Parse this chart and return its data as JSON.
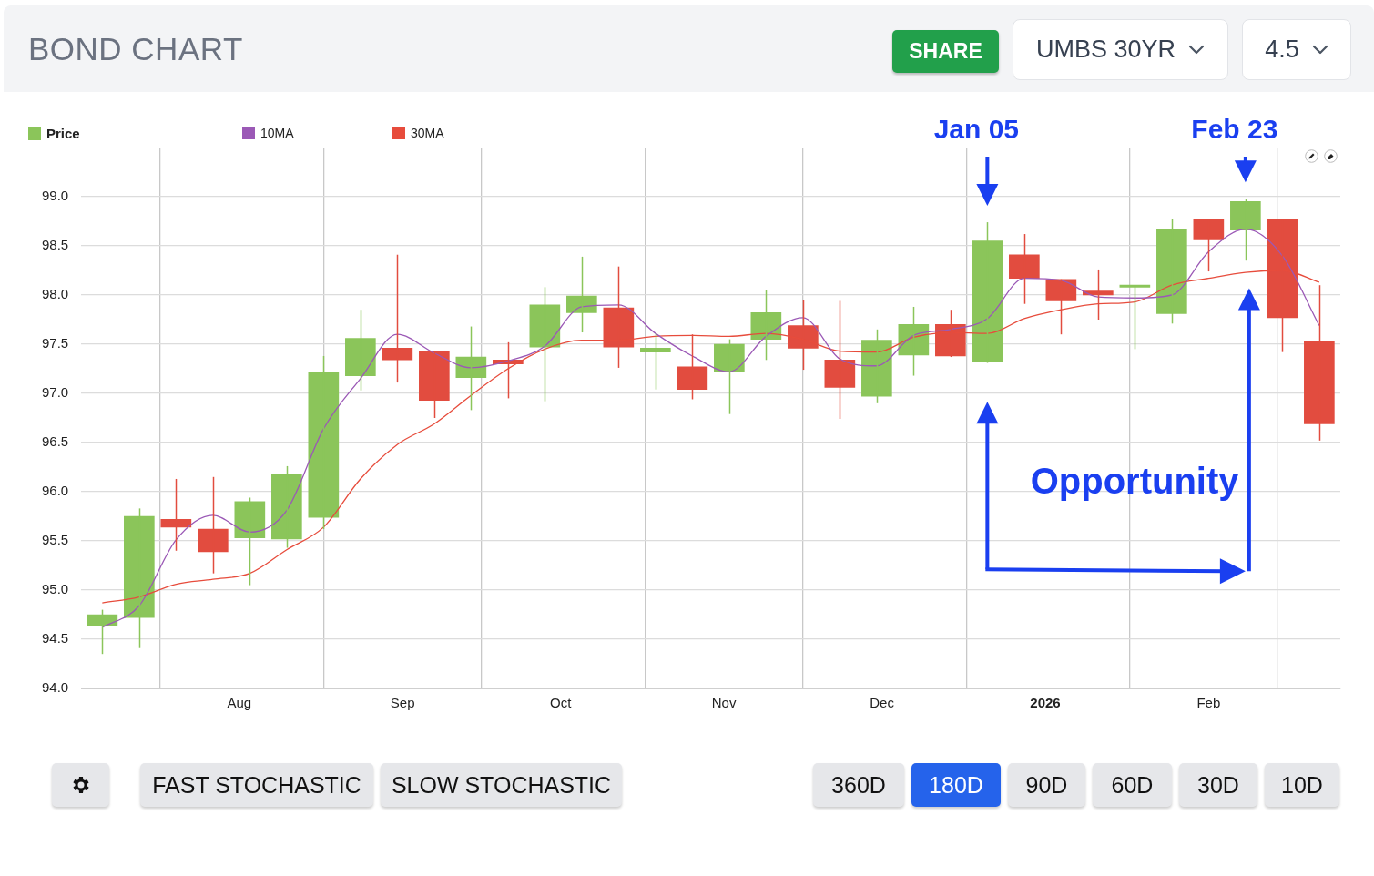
{
  "chart_data": {
    "type": "candlestick",
    "title": "BOND CHART",
    "x": [
      "2025-07-21",
      "2025-07-28",
      "2025-08-04",
      "2025-08-11",
      "2025-08-18",
      "2025-08-25",
      "2025-09-01",
      "2025-09-08",
      "2025-09-15",
      "2025-09-22",
      "2025-09-29",
      "2025-10-06",
      "2025-10-13",
      "2025-10-20",
      "2025-10-27",
      "2025-11-03",
      "2025-11-10",
      "2025-11-17",
      "2025-11-24",
      "2025-12-01",
      "2025-12-08",
      "2025-12-15",
      "2025-12-22",
      "2025-12-29",
      "2026-01-05",
      "2026-01-12",
      "2026-01-19",
      "2026-01-26",
      "2026-02-02",
      "2026-02-09",
      "2026-02-16",
      "2026-02-23",
      "2026-03-02",
      "2026-03-09"
    ],
    "xlim": [
      "2025-07-17",
      "2026-03-13"
    ],
    "xticks": [
      {
        "value": "2025-08-01",
        "label": null
      },
      {
        "value": "2025-08-16",
        "label": "Aug"
      },
      {
        "value": "2025-09-01",
        "label": null
      },
      {
        "value": "2025-09-16",
        "label": "Sep"
      },
      {
        "value": "2025-10-01",
        "label": null
      },
      {
        "value": "2025-10-16",
        "label": "Oct"
      },
      {
        "value": "2025-11-01",
        "label": null
      },
      {
        "value": "2025-11-16",
        "label": "Nov"
      },
      {
        "value": "2025-12-01",
        "label": null
      },
      {
        "value": "2025-12-16",
        "label": "Dec"
      },
      {
        "value": "2026-01-01",
        "label": null
      },
      {
        "value": "2026-01-16",
        "label": "2026"
      },
      {
        "value": "2026-02-01",
        "label": null
      },
      {
        "value": "2026-02-16",
        "label": "Feb"
      },
      {
        "value": "2026-03-01",
        "label": null
      }
    ],
    "ylim": [
      94,
      99.5
    ],
    "yticks": [
      {
        "value": 94,
        "label": "94.0"
      },
      {
        "value": 94.5,
        "label": "94.5"
      },
      {
        "value": 95,
        "label": "95.0"
      },
      {
        "value": 95.5,
        "label": "95.5"
      },
      {
        "value": 96,
        "label": "96.0"
      },
      {
        "value": 96.5,
        "label": "96.5"
      },
      {
        "value": 97,
        "label": "97.0"
      },
      {
        "value": 97.5,
        "label": "97.5"
      },
      {
        "value": 98,
        "label": "98.0"
      },
      {
        "value": 98.5,
        "label": "98.5"
      },
      {
        "value": 99,
        "label": "99.0"
      }
    ],
    "grid": true,
    "legend": "top left",
    "marker": "none",
    "series": [
      {
        "name": "Price",
        "type": "candlestick",
        "color": "#8bc55a",
        "colors": [
          "#8bc55a",
          "#8bc55a",
          "#e24c3f",
          "#e24c3f",
          "#8bc55a",
          "#8bc55a",
          "#8bc55a",
          "#8bc55a",
          "#e24c3f",
          "#e24c3f",
          "#8bc55a",
          "#e24c3f",
          "#8bc55a",
          "#8bc55a",
          "#e24c3f",
          "#8bc55a",
          "#e24c3f",
          "#8bc55a",
          "#8bc55a",
          "#e24c3f",
          "#e24c3f",
          "#8bc55a",
          "#8bc55a",
          "#e24c3f",
          "#8bc55a",
          "#e24c3f",
          "#e24c3f",
          "#e24c3f",
          "#8bc55a",
          "#8bc55a",
          "#e24c3f",
          "#8bc55a",
          "#e24c3f",
          "#e24c3f"
        ],
        "ohlc": [
          [
            94.64,
            94.8,
            94.35,
            94.75
          ],
          [
            94.72,
            95.83,
            94.41,
            95.75
          ],
          [
            95.72,
            96.13,
            95.4,
            95.64
          ],
          [
            95.62,
            96.15,
            95.17,
            95.39
          ],
          [
            95.53,
            95.94,
            95.05,
            95.9
          ],
          [
            95.52,
            96.26,
            95.43,
            96.18
          ],
          [
            95.74,
            97.38,
            95.62,
            97.21
          ],
          [
            97.18,
            97.85,
            97.03,
            97.56
          ],
          [
            97.46,
            98.41,
            97.11,
            97.34
          ],
          [
            97.43,
            97.43,
            96.75,
            96.93
          ],
          [
            97.16,
            97.68,
            96.83,
            97.37
          ],
          [
            97.34,
            97.52,
            96.95,
            97.3
          ],
          [
            97.47,
            98.08,
            96.92,
            97.9
          ],
          [
            97.82,
            98.39,
            97.62,
            97.99
          ],
          [
            97.87,
            98.29,
            97.26,
            97.47
          ],
          [
            97.42,
            97.61,
            97.04,
            97.46
          ],
          [
            97.27,
            97.6,
            96.94,
            97.04
          ],
          [
            97.22,
            97.55,
            96.79,
            97.5
          ],
          [
            97.55,
            98.05,
            97.34,
            97.82
          ],
          [
            97.69,
            97.95,
            97.24,
            97.46
          ],
          [
            97.34,
            97.94,
            96.74,
            97.06
          ],
          [
            96.97,
            97.65,
            96.9,
            97.54
          ],
          [
            97.39,
            97.88,
            97.18,
            97.7
          ],
          [
            97.7,
            97.85,
            97.37,
            97.38
          ],
          [
            97.32,
            98.74,
            97.31,
            98.55
          ],
          [
            98.41,
            98.62,
            97.91,
            98.17
          ],
          [
            98.16,
            98.16,
            97.6,
            97.94
          ],
          [
            98.04,
            98.26,
            97.75,
            98.0
          ],
          [
            98.08,
            98.1,
            97.45,
            98.1
          ],
          [
            97.81,
            98.77,
            97.71,
            98.67
          ],
          [
            98.77,
            98.77,
            98.24,
            98.56
          ],
          [
            98.66,
            98.98,
            98.35,
            98.95
          ],
          [
            98.77,
            98.77,
            97.42,
            97.77
          ],
          [
            97.53,
            98.1,
            96.52,
            96.69
          ]
        ]
      },
      {
        "name": "10MA",
        "type": "line",
        "color": "#9b59b6",
        "values": [
          94.62,
          94.84,
          95.51,
          95.76,
          95.59,
          95.81,
          96.64,
          97.15,
          97.6,
          97.41,
          97.26,
          97.33,
          97.48,
          97.88,
          97.9,
          97.61,
          97.38,
          97.22,
          97.58,
          97.77,
          97.35,
          97.28,
          97.59,
          97.65,
          97.76,
          98.17,
          98.15,
          97.98,
          97.97,
          98.0,
          98.44,
          98.67,
          98.4,
          97.69
        ]
      },
      {
        "name": "30MA",
        "type": "line",
        "color": "#e74c3c",
        "values": [
          94.87,
          94.93,
          95.06,
          95.11,
          95.17,
          95.41,
          95.64,
          96.13,
          96.48,
          96.69,
          96.98,
          97.25,
          97.45,
          97.54,
          97.54,
          97.58,
          97.59,
          97.58,
          97.61,
          97.55,
          97.43,
          97.42,
          97.57,
          97.62,
          97.61,
          97.76,
          97.85,
          97.91,
          97.93,
          98.1,
          98.17,
          98.23,
          98.25,
          98.13
        ]
      }
    ],
    "annotations": [
      {
        "text": "Jan 05",
        "x": "2026-01-05",
        "y": 98.74
      },
      {
        "text": "Feb 23",
        "x": "2026-02-23",
        "y": 98.98
      },
      "Opportunity",
      "SHARE",
      "UMBS 30YR",
      "4.5",
      "FAST STOCHASTIC",
      "SLOW STOCHASTIC",
      "360D",
      "180D",
      "90D",
      "60D",
      "30D",
      "10D"
    ]
  }
}
